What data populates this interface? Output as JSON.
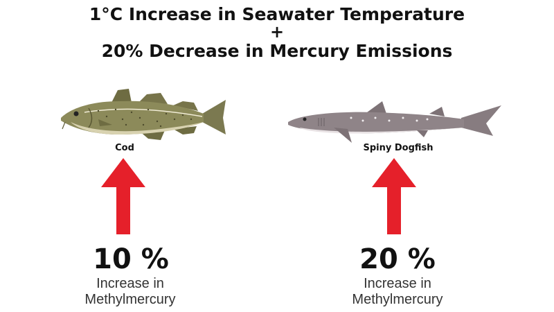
{
  "header": {
    "line1": "1°C Increase in Seawater Temperature",
    "plus": "+",
    "line2": "20% Decrease in Mercury Emissions"
  },
  "columns": [
    {
      "species": "Cod",
      "change": "10 %",
      "change_value_percent": 10,
      "direction": "increase",
      "desc_line1": "Increase in",
      "desc_line2": "Methylmercury"
    },
    {
      "species": "Spiny Dogfish",
      "change": "20 %",
      "change_value_percent": 20,
      "direction": "increase",
      "desc_line1": "Increase in",
      "desc_line2": "Methylmercury"
    }
  ],
  "colors": {
    "arrow": "#e5202a",
    "text": "#111111",
    "cod_body": "#8c8a5a",
    "dogfish_body": "#8f8488"
  }
}
